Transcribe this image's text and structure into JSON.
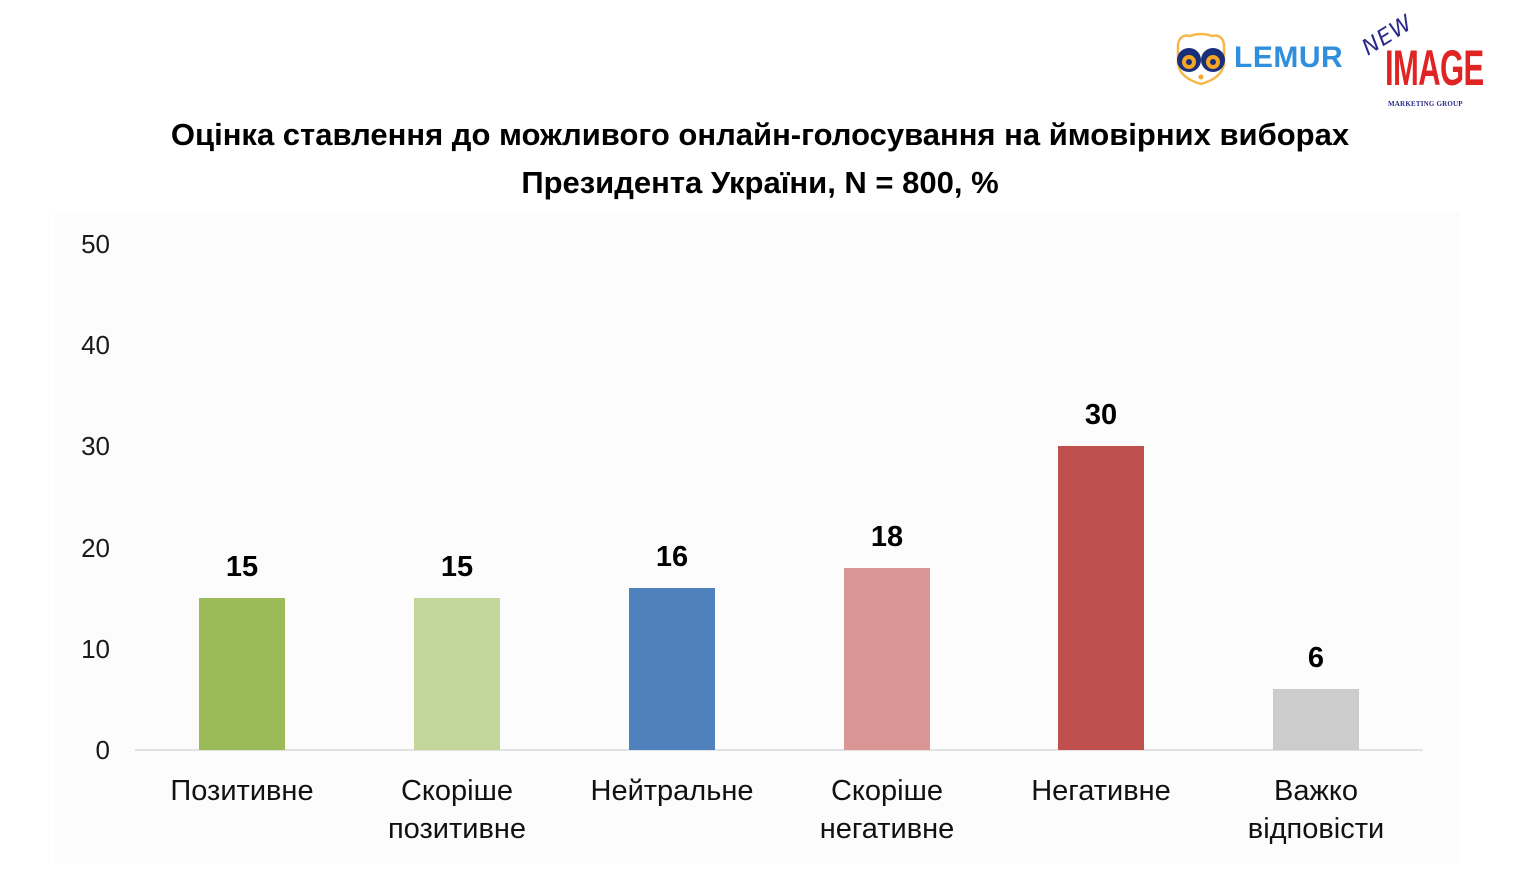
{
  "logos": {
    "lemur": {
      "text": "LEMUR",
      "color": "#2f8fdc",
      "face_color": "#f5a623",
      "eye_color": "#1a2f7a"
    },
    "new_image": {
      "new": "NEW",
      "image": "IMAGE",
      "group": "MARKETING GROUP"
    }
  },
  "title": {
    "line1": "Оцінка ставлення до можливого онлайн-голосування на ймовірних виборах",
    "line2": "Президента України, N = 800, %"
  },
  "chart_data": {
    "type": "bar",
    "title": "Оцінка ставлення до можливого онлайн-голосування на ймовірних виборах Президента України, N = 800, %",
    "xlabel": "",
    "ylabel": "",
    "ylim": [
      0,
      50
    ],
    "yticks": [
      "0",
      "10",
      "20",
      "30",
      "40",
      "50"
    ],
    "grid": false,
    "legend": null,
    "categories": [
      "Позитивне",
      "Скоріше позитивне",
      "Нейтральне",
      "Скоріше негативне",
      "Негативне",
      "Важко відповісти"
    ],
    "category_lines": [
      [
        "Позитивне"
      ],
      [
        "Скоріше",
        "позитивне"
      ],
      [
        "Нейтральне"
      ],
      [
        "Скоріше",
        "негативне"
      ],
      [
        "Негативне"
      ],
      [
        "Важко",
        "відповісти"
      ]
    ],
    "values": [
      15,
      15,
      16,
      18,
      30,
      6
    ],
    "value_labels": [
      "15",
      "15",
      "16",
      "18",
      "30",
      "6"
    ],
    "colors": [
      "#9bbb59",
      "#c3d69b",
      "#4f81bd",
      "#d99694",
      "#c0504d",
      "#cccccc"
    ]
  }
}
